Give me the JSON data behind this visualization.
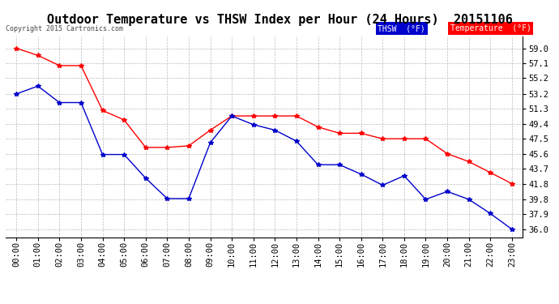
{
  "title": "Outdoor Temperature vs THSW Index per Hour (24 Hours)  20151106",
  "copyright": "Copyright 2015 Cartronics.com",
  "hours": [
    "00:00",
    "01:00",
    "02:00",
    "03:00",
    "04:00",
    "05:00",
    "06:00",
    "07:00",
    "08:00",
    "09:00",
    "10:00",
    "11:00",
    "12:00",
    "13:00",
    "14:00",
    "15:00",
    "16:00",
    "17:00",
    "18:00",
    "19:00",
    "20:00",
    "21:00",
    "22:00",
    "23:00"
  ],
  "temperature": [
    59.0,
    58.1,
    56.8,
    56.8,
    51.1,
    49.9,
    46.4,
    46.4,
    46.6,
    48.6,
    50.4,
    50.4,
    50.4,
    50.4,
    49.0,
    48.2,
    48.2,
    47.5,
    47.5,
    47.5,
    45.6,
    44.6,
    43.2,
    41.8
  ],
  "thsw": [
    53.2,
    54.2,
    52.1,
    52.1,
    45.5,
    45.5,
    42.5,
    39.9,
    39.9,
    47.0,
    50.4,
    49.3,
    48.6,
    47.2,
    44.2,
    44.2,
    43.0,
    41.6,
    42.8,
    39.8,
    40.8,
    39.8,
    38.0,
    36.0
  ],
  "ylim_min": 35.0,
  "ylim_max": 60.5,
  "yticks": [
    36.0,
    37.9,
    39.8,
    41.8,
    43.7,
    45.6,
    47.5,
    49.4,
    51.3,
    53.2,
    55.2,
    57.1,
    59.0
  ],
  "temp_color": "#ff0000",
  "thsw_color": "#0000cc",
  "background_color": "#ffffff",
  "plot_bg_color": "#ffffff",
  "grid_color": "#bbbbbb",
  "title_fontsize": 11,
  "copyright_fontsize": 6,
  "tick_fontsize": 7.5,
  "legend_thsw_bg": "#0000cc",
  "legend_temp_bg": "#ff0000",
  "legend_thsw_label": "THSW  (°F)",
  "legend_temp_label": "Temperature  (°F)"
}
